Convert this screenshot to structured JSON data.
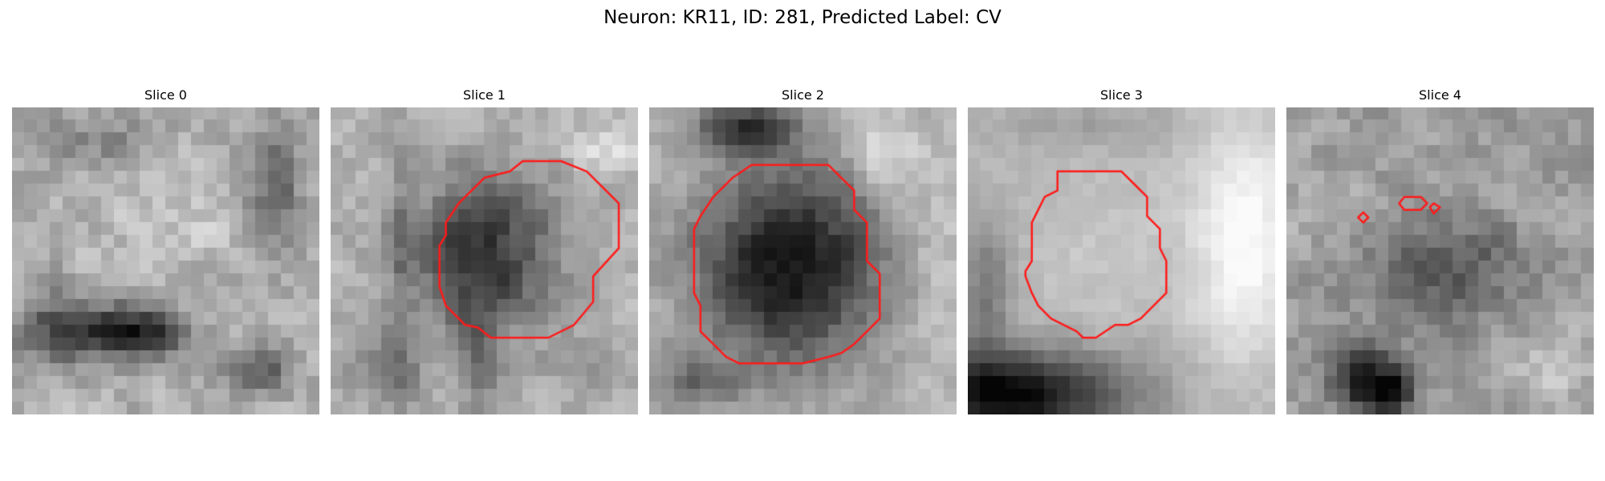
{
  "figure": {
    "title": "Neuron: KR11, ID: 281, Predicted Label: CV",
    "contour_color": "#ff1a1a",
    "panels": [
      {
        "title": "Slice 0",
        "contours": []
      },
      {
        "title": "Slice 1",
        "contours": [
          [
            [
              15,
              4.2
            ],
            [
              18,
              4.2
            ],
            [
              20,
              5
            ],
            [
              22.5,
              7.5
            ],
            [
              22.5,
              11
            ],
            [
              20.5,
              13.2
            ],
            [
              20.5,
              15.2
            ],
            [
              19,
              17
            ],
            [
              17,
              18
            ],
            [
              12.5,
              18
            ],
            [
              11.5,
              17.2
            ],
            [
              10.5,
              17
            ],
            [
              9,
              15.5
            ],
            [
              8.5,
              14
            ],
            [
              8.5,
              10.8
            ],
            [
              9,
              10
            ],
            [
              9,
              9
            ],
            [
              10,
              7.5
            ],
            [
              12,
              5.5
            ],
            [
              14,
              5
            ],
            [
              15,
              4.2
            ]
          ]
        ]
      },
      {
        "title": "Slice 2",
        "contours": [
          [
            [
              8,
              4.5
            ],
            [
              14,
              4.5
            ],
            [
              15,
              5.5
            ],
            [
              16,
              6.5
            ],
            [
              16,
              8
            ],
            [
              17,
              9
            ],
            [
              17,
              12
            ],
            [
              18,
              13
            ],
            [
              18,
              16.5
            ],
            [
              17,
              17.5
            ],
            [
              16,
              18.5
            ],
            [
              15,
              19.2
            ],
            [
              14,
              19.5
            ],
            [
              12,
              20
            ],
            [
              9,
              20
            ],
            [
              7,
              20
            ],
            [
              6,
              19.5
            ],
            [
              5,
              18.5
            ],
            [
              4,
              17.5
            ],
            [
              4,
              15.5
            ],
            [
              3.5,
              14.5
            ],
            [
              3.5,
              12
            ],
            [
              3.5,
              9.5
            ],
            [
              4,
              8.5
            ],
            [
              5,
              7
            ],
            [
              6.5,
              5.5
            ],
            [
              8,
              4.5
            ]
          ]
        ]
      },
      {
        "title": "Slice 3",
        "contours": [
          [
            [
              7,
              5
            ],
            [
              12,
              5
            ],
            [
              13,
              6
            ],
            [
              14,
              7
            ],
            [
              14,
              8.5
            ],
            [
              14.5,
              9
            ],
            [
              15,
              9.5
            ],
            [
              15,
              11
            ],
            [
              15.5,
              12
            ],
            [
              15.5,
              13
            ],
            [
              15.5,
              14.5
            ],
            [
              14.5,
              15.5
            ],
            [
              13.5,
              16.5
            ],
            [
              12.5,
              17
            ],
            [
              11.5,
              17
            ],
            [
              10,
              18
            ],
            [
              9,
              18
            ],
            [
              8.5,
              17.5
            ],
            [
              7.5,
              17
            ],
            [
              6.5,
              16.5
            ],
            [
              5.5,
              15.5
            ],
            [
              5,
              14.5
            ],
            [
              4.5,
              13.2
            ],
            [
              4.5,
              12.8
            ],
            [
              5,
              12
            ],
            [
              5,
              11
            ],
            [
              5,
              9
            ],
            [
              5.5,
              8
            ],
            [
              6,
              7
            ],
            [
              7,
              6.5
            ],
            [
              7,
              5
            ]
          ]
        ]
      },
      {
        "title": "Slice 4",
        "contours": [
          [
            [
              9.2,
              7
            ],
            [
              10.5,
              7
            ],
            [
              11,
              7.5
            ],
            [
              10.5,
              8
            ],
            [
              9.2,
              8
            ],
            [
              8.8,
              7.5
            ],
            [
              9.2,
              7
            ]
          ],
          [
            [
              11.5,
              7.5
            ],
            [
              12,
              7.8
            ],
            [
              11.5,
              8.3
            ],
            [
              11.2,
              7.8
            ],
            [
              11.5,
              7.5
            ]
          ],
          [
            [
              6,
              8.2
            ],
            [
              6.4,
              8.6
            ],
            [
              6,
              9
            ],
            [
              5.6,
              8.6
            ],
            [
              6,
              8.2
            ]
          ]
        ]
      }
    ]
  }
}
